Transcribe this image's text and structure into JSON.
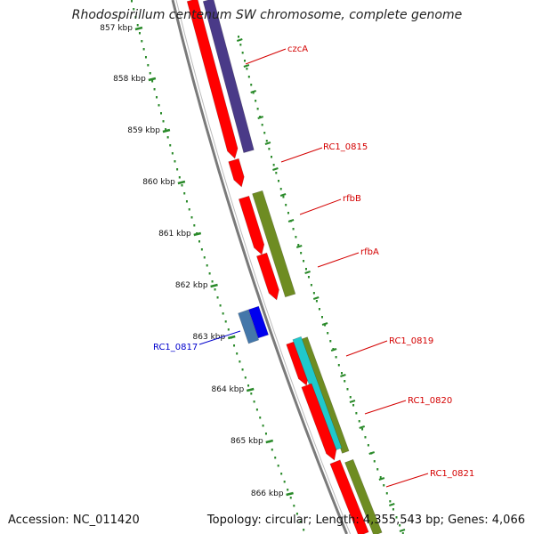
{
  "title": "Rhodospirillum centenum SW chromosome, complete genome",
  "footer": {
    "accession": "Accession: NC_011420",
    "info": "Topology: circular; Length: 4,355,543 bp; Genes: 4,066"
  },
  "colors": {
    "backbone": "#7a7a7a",
    "ticks": "#2a8a2a",
    "red": "#ff0000",
    "purple": "#4a3a88",
    "olive": "#6e8c22",
    "cyan": "#20c8cc",
    "blue": "#0000ee",
    "steelblue": "#4477aa",
    "label_red": "#d40000",
    "label_blue": "#0000cc"
  },
  "kbp_labels": [
    "857 kbp",
    "858 kbp",
    "859 kbp",
    "860 kbp",
    "861 kbp",
    "862 kbp",
    "863 kbp",
    "864 kbp",
    "865 kbp",
    "866 kbp"
  ],
  "gene_labels": [
    "czcA",
    "RC1_0815",
    "rfbB",
    "rfbA",
    "RC1_0819",
    "RC1_0820",
    "RC1_0821",
    "RC1_0817"
  ]
}
